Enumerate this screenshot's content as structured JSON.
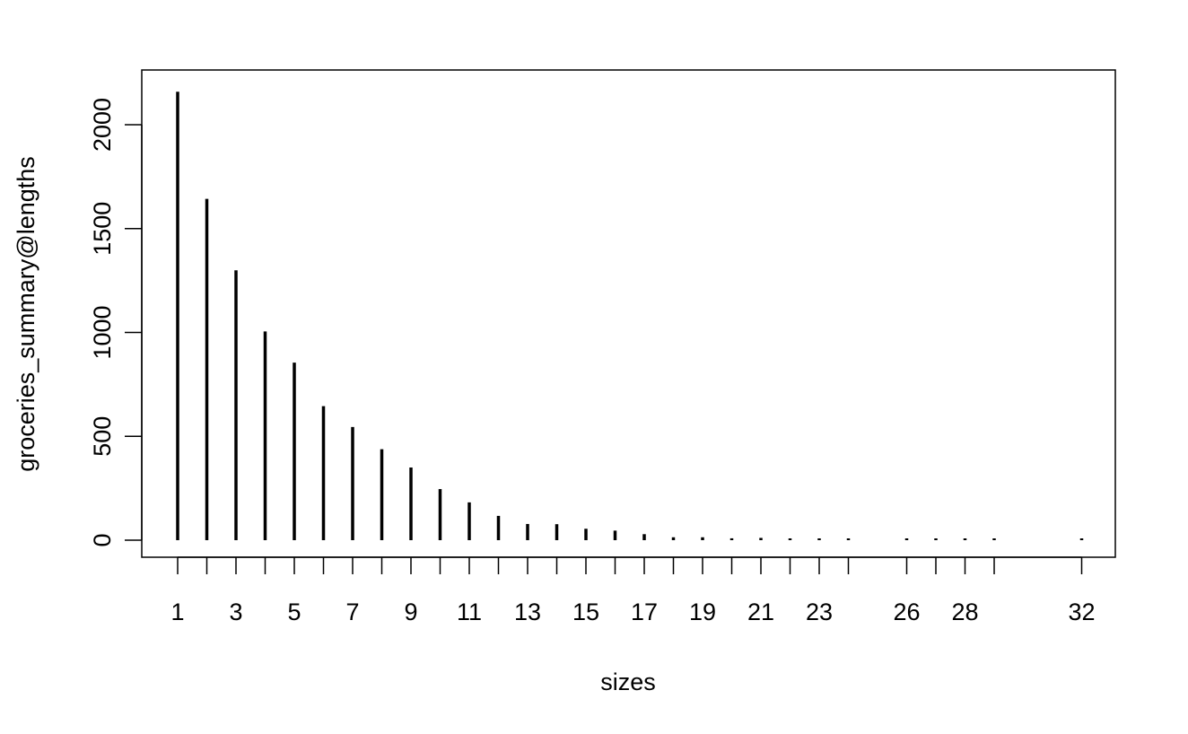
{
  "chart_data": {
    "type": "bar",
    "style": "histogram-lines",
    "xlabel": "sizes",
    "ylabel": "groceries_summary@lengths",
    "x": [
      1,
      2,
      3,
      4,
      5,
      6,
      7,
      8,
      9,
      10,
      11,
      12,
      13,
      14,
      15,
      16,
      17,
      18,
      19,
      20,
      21,
      22,
      23,
      24,
      26,
      27,
      28,
      29,
      32
    ],
    "values": [
      2159,
      1643,
      1299,
      1005,
      855,
      645,
      545,
      438,
      350,
      246,
      182,
      117,
      78,
      77,
      55,
      46,
      29,
      14,
      14,
      9,
      11,
      4,
      6,
      1,
      1,
      1,
      1,
      3,
      1
    ],
    "x_tick_labels": [
      "1",
      "3",
      "5",
      "7",
      "9",
      "11",
      "13",
      "15",
      "17",
      "19",
      "21",
      "23",
      "26",
      "28",
      "32"
    ],
    "y_ticks": [
      0,
      500,
      1000,
      1500,
      2000
    ],
    "y_tick_labels": [
      "0",
      "500",
      "1000",
      "1500",
      "2000"
    ],
    "ylim": [
      0,
      2159
    ],
    "grid": false,
    "legend": "none"
  }
}
